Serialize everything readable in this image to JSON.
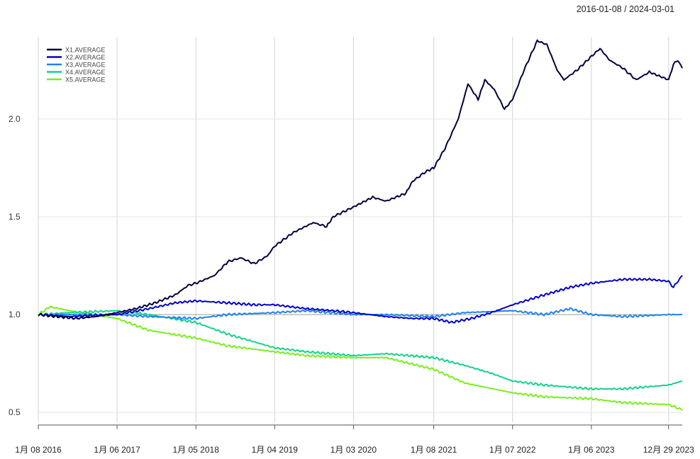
{
  "date_range": "2016-01-08 / 2024-03-01",
  "chart_data": {
    "type": "line",
    "title": "",
    "xlabel": "",
    "ylabel": "",
    "x_range": [
      "2016-01-08",
      "2024-03-01"
    ],
    "ylim": [
      0.45,
      2.42
    ],
    "y_ticks": [
      0.5,
      1.0,
      1.5,
      2.0
    ],
    "y_tick_labels": [
      "0.5",
      "1.0",
      "1.5",
      "2.0"
    ],
    "reference_line": 1.0,
    "grid": "vertical",
    "legend_position": "top-left",
    "x_ticks": [
      {
        "date": "2016-01-08",
        "label": "1月 08 2016"
      },
      {
        "date": "2017-01-06",
        "label": "1月 06 2017"
      },
      {
        "date": "2018-01-05",
        "label": "1月 05 2018"
      },
      {
        "date": "2019-01-04",
        "label": "1月 04 2019"
      },
      {
        "date": "2020-01-03",
        "label": "1月 03 2020"
      },
      {
        "date": "2021-01-08",
        "label": "1月 08 2021"
      },
      {
        "date": "2022-01-07",
        "label": "1月 07 2022"
      },
      {
        "date": "2023-01-06",
        "label": "1月 06 2023"
      },
      {
        "date": "2023-12-29",
        "label": "12月 29 2023"
      }
    ],
    "series": [
      {
        "name": "X1.AVERAGE",
        "color": "#00003c",
        "points": [
          [
            "2016-01-08",
            1.0
          ],
          [
            "2016-04-01",
            0.99
          ],
          [
            "2016-07-01",
            0.98
          ],
          [
            "2016-10-01",
            0.99
          ],
          [
            "2017-01-06",
            1.01
          ],
          [
            "2017-04-01",
            1.03
          ],
          [
            "2017-07-01",
            1.06
          ],
          [
            "2017-10-01",
            1.1
          ],
          [
            "2017-12-01",
            1.15
          ],
          [
            "2018-01-05",
            1.16
          ],
          [
            "2018-04-01",
            1.2
          ],
          [
            "2018-06-01",
            1.27
          ],
          [
            "2018-08-01",
            1.29
          ],
          [
            "2018-10-01",
            1.26
          ],
          [
            "2018-12-01",
            1.3
          ],
          [
            "2019-01-04",
            1.35
          ],
          [
            "2019-04-01",
            1.42
          ],
          [
            "2019-07-01",
            1.47
          ],
          [
            "2019-09-01",
            1.45
          ],
          [
            "2019-10-01",
            1.5
          ],
          [
            "2020-01-03",
            1.55
          ],
          [
            "2020-04-01",
            1.6
          ],
          [
            "2020-06-01",
            1.58
          ],
          [
            "2020-09-01",
            1.62
          ],
          [
            "2020-10-01",
            1.68
          ],
          [
            "2020-12-01",
            1.73
          ],
          [
            "2021-01-08",
            1.75
          ],
          [
            "2021-03-01",
            1.85
          ],
          [
            "2021-05-01",
            2.0
          ],
          [
            "2021-06-15",
            2.18
          ],
          [
            "2021-08-01",
            2.1
          ],
          [
            "2021-09-01",
            2.2
          ],
          [
            "2021-10-15",
            2.15
          ],
          [
            "2021-12-01",
            2.05
          ],
          [
            "2022-01-07",
            2.1
          ],
          [
            "2022-03-01",
            2.25
          ],
          [
            "2022-05-01",
            2.4
          ],
          [
            "2022-06-15",
            2.38
          ],
          [
            "2022-08-01",
            2.25
          ],
          [
            "2022-09-01",
            2.2
          ],
          [
            "2022-11-01",
            2.25
          ],
          [
            "2023-01-06",
            2.32
          ],
          [
            "2023-02-15",
            2.36
          ],
          [
            "2023-04-01",
            2.3
          ],
          [
            "2023-06-01",
            2.26
          ],
          [
            "2023-08-01",
            2.2
          ],
          [
            "2023-10-01",
            2.24
          ],
          [
            "2023-12-29",
            2.2
          ],
          [
            "2024-01-20",
            2.28
          ],
          [
            "2024-02-10",
            2.3
          ],
          [
            "2024-03-01",
            2.26
          ]
        ]
      },
      {
        "name": "X2.AVERAGE",
        "color": "#0000c8",
        "points": [
          [
            "2016-01-08",
            1.0
          ],
          [
            "2016-06-01",
            0.99
          ],
          [
            "2017-01-06",
            1.0
          ],
          [
            "2017-06-01",
            1.03
          ],
          [
            "2017-10-01",
            1.06
          ],
          [
            "2018-01-05",
            1.07
          ],
          [
            "2018-06-01",
            1.06
          ],
          [
            "2018-10-01",
            1.05
          ],
          [
            "2019-01-04",
            1.05
          ],
          [
            "2019-06-01",
            1.03
          ],
          [
            "2019-10-01",
            1.02
          ],
          [
            "2020-01-03",
            1.01
          ],
          [
            "2020-06-01",
            0.99
          ],
          [
            "2020-10-01",
            0.98
          ],
          [
            "2021-01-08",
            0.98
          ],
          [
            "2021-04-01",
            0.96
          ],
          [
            "2021-07-01",
            0.98
          ],
          [
            "2021-10-01",
            1.01
          ],
          [
            "2022-01-07",
            1.05
          ],
          [
            "2022-06-01",
            1.1
          ],
          [
            "2022-10-01",
            1.14
          ],
          [
            "2023-01-06",
            1.16
          ],
          [
            "2023-06-01",
            1.18
          ],
          [
            "2023-10-01",
            1.18
          ],
          [
            "2023-12-29",
            1.17
          ],
          [
            "2024-01-20",
            1.14
          ],
          [
            "2024-03-01",
            1.2
          ]
        ]
      },
      {
        "name": "X3.AVERAGE",
        "color": "#1e82f0",
        "points": [
          [
            "2016-01-08",
            1.0
          ],
          [
            "2016-06-01",
            1.0
          ],
          [
            "2017-01-06",
            1.0
          ],
          [
            "2017-06-01",
            0.99
          ],
          [
            "2018-01-05",
            0.98
          ],
          [
            "2018-06-01",
            1.0
          ],
          [
            "2019-01-04",
            1.01
          ],
          [
            "2019-06-01",
            1.02
          ],
          [
            "2020-01-03",
            1.0
          ],
          [
            "2020-06-01",
            1.0
          ],
          [
            "2021-01-08",
            0.99
          ],
          [
            "2021-06-01",
            1.01
          ],
          [
            "2022-01-07",
            1.02
          ],
          [
            "2022-06-01",
            1.0
          ],
          [
            "2022-10-01",
            1.03
          ],
          [
            "2023-01-06",
            1.0
          ],
          [
            "2023-06-01",
            0.99
          ],
          [
            "2023-12-29",
            1.0
          ],
          [
            "2024-03-01",
            1.0
          ]
        ]
      },
      {
        "name": "X4.AVERAGE",
        "color": "#14d28c",
        "points": [
          [
            "2016-01-08",
            1.0
          ],
          [
            "2016-06-01",
            1.01
          ],
          [
            "2017-01-06",
            1.02
          ],
          [
            "2017-06-01",
            1.0
          ],
          [
            "2018-01-05",
            0.96
          ],
          [
            "2018-06-01",
            0.9
          ],
          [
            "2019-01-04",
            0.83
          ],
          [
            "2019-06-01",
            0.81
          ],
          [
            "2020-01-03",
            0.79
          ],
          [
            "2020-06-01",
            0.8
          ],
          [
            "2021-01-08",
            0.78
          ],
          [
            "2021-06-01",
            0.74
          ],
          [
            "2021-10-01",
            0.7
          ],
          [
            "2022-01-07",
            0.66
          ],
          [
            "2022-06-01",
            0.64
          ],
          [
            "2023-01-06",
            0.62
          ],
          [
            "2023-06-01",
            0.62
          ],
          [
            "2023-12-29",
            0.64
          ],
          [
            "2024-03-01",
            0.66
          ]
        ]
      },
      {
        "name": "X5.AVERAGE",
        "color": "#78f01e",
        "points": [
          [
            "2016-01-08",
            1.0
          ],
          [
            "2016-03-01",
            1.04
          ],
          [
            "2016-06-01",
            1.02
          ],
          [
            "2017-01-06",
            0.98
          ],
          [
            "2017-06-01",
            0.92
          ],
          [
            "2018-01-05",
            0.88
          ],
          [
            "2018-06-01",
            0.84
          ],
          [
            "2019-01-04",
            0.81
          ],
          [
            "2019-06-01",
            0.79
          ],
          [
            "2020-01-03",
            0.78
          ],
          [
            "2020-06-01",
            0.78
          ],
          [
            "2021-01-08",
            0.72
          ],
          [
            "2021-06-01",
            0.65
          ],
          [
            "2022-01-07",
            0.6
          ],
          [
            "2022-06-01",
            0.58
          ],
          [
            "2023-01-06",
            0.57
          ],
          [
            "2023-06-01",
            0.55
          ],
          [
            "2023-12-29",
            0.54
          ],
          [
            "2024-02-15",
            0.52
          ],
          [
            "2024-03-01",
            0.51
          ]
        ]
      }
    ]
  }
}
